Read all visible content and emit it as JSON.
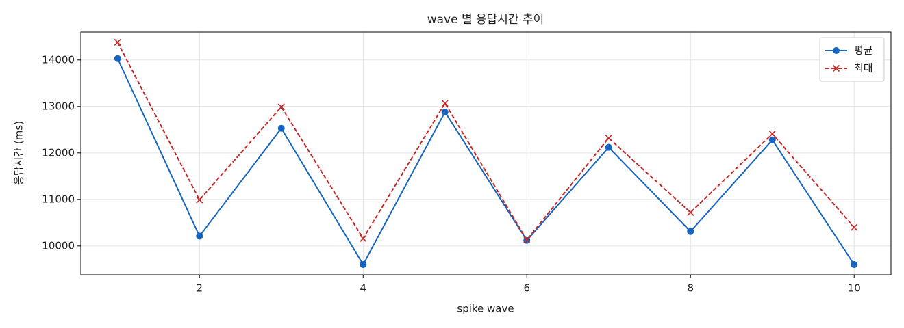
{
  "chart_data": {
    "type": "line",
    "title": "wave 별 응답시간 추이",
    "xlabel": "spike wave",
    "ylabel": "응답시간 (ms)",
    "x": [
      1,
      2,
      3,
      4,
      5,
      6,
      7,
      8,
      9,
      10
    ],
    "series": [
      {
        "name": "평균",
        "color": "#1565c0",
        "marker": "o",
        "linestyle": "solid",
        "values": [
          14030,
          10210,
          12530,
          9600,
          12880,
          10120,
          12120,
          10310,
          12280,
          9600
        ]
      },
      {
        "name": "최대",
        "color": "#c62828",
        "marker": "x",
        "linestyle": "dashed",
        "values": [
          14380,
          10990,
          12990,
          10160,
          13070,
          10130,
          12320,
          10720,
          12410,
          10400
        ]
      }
    ],
    "xlim": [
      0.55,
      10.45
    ],
    "xticks": [
      2,
      4,
      6,
      8,
      10
    ],
    "ylim": [
      9380,
      14600
    ],
    "yticks": [
      10000,
      11000,
      12000,
      13000,
      14000
    ],
    "grid": true,
    "legend": "upper right"
  }
}
